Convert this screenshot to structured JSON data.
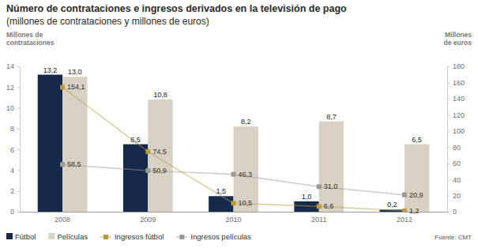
{
  "chart_data": {
    "type": "bar",
    "title": "Número de contrataciones e ingresos derivados en la televisión de pago",
    "subtitle": "(millones de contrataciones y millones de euros)",
    "y_label": "Millones de\ncontrataciones",
    "y2_label": "Millones\nde euros",
    "source": "Fuente: CMT",
    "categories": [
      "2008",
      "2009",
      "2010",
      "2011",
      "2012"
    ],
    "series": [
      {
        "name": "Fútbol",
        "type": "bar",
        "color": "#15294a",
        "values": [
          13.2,
          6.5,
          1.5,
          1.0,
          0.2
        ],
        "value_labels": [
          "13,2",
          "6,5",
          "1,5",
          "1,0",
          "0,2"
        ]
      },
      {
        "name": "Películas",
        "type": "bar",
        "color": "#d8d1c4",
        "values": [
          13.0,
          10.8,
          8.2,
          8.7,
          6.5
        ],
        "value_labels": [
          "13,0",
          "10,8",
          "8,2",
          "8,7",
          "6,5"
        ]
      },
      {
        "name": "Ingresos fútbol",
        "type": "line",
        "axis": "y2",
        "color": "#b99b3e",
        "marker": "square",
        "values": [
          154.1,
          74.5,
          10.5,
          6.6,
          1.2
        ],
        "value_labels": [
          "154,1",
          "74,5",
          "10,5",
          "6,6",
          "1,2"
        ]
      },
      {
        "name": "Ingresos películas",
        "type": "line",
        "axis": "y2",
        "color": "#9c9a95",
        "marker": "square",
        "values": [
          58.5,
          50.9,
          46.3,
          31.0,
          20.9
        ],
        "value_labels": [
          "58,5",
          "50,9",
          "46,3",
          "31,0",
          "20,9"
        ]
      }
    ],
    "ylim": [
      0,
      14
    ],
    "yticks": [
      0,
      2,
      4,
      6,
      8,
      10,
      12,
      14
    ],
    "y2lim": [
      0,
      180
    ],
    "y2ticks": [
      0,
      20,
      40,
      60,
      80,
      100,
      120,
      140,
      160,
      180
    ],
    "grid": false,
    "legend": "bottom",
    "data_labels": true
  }
}
